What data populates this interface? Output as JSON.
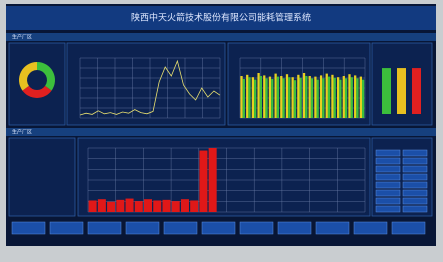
{
  "header": {
    "title": "陕西中天火箭技术股份有限公司能耗管理系统"
  },
  "sections": [
    "生产厂区",
    "生产厂区"
  ],
  "donut": {
    "values": [
      35,
      30,
      35
    ],
    "colors": [
      "#3cbf3c",
      "#e02020",
      "#e8c020"
    ]
  },
  "line": {
    "ylim": [
      0,
      100
    ],
    "color": "#e8e070",
    "values": [
      5,
      8,
      6,
      12,
      7,
      9,
      6,
      10,
      8,
      14,
      9,
      7,
      11,
      60,
      85,
      70,
      95,
      55,
      40,
      30,
      50,
      35,
      45,
      38
    ]
  },
  "bars": {
    "ylim": [
      0,
      100
    ],
    "series": [
      {
        "color": "#e8d020",
        "values": [
          70,
          72,
          68,
          75,
          71,
          69,
          74,
          70,
          73,
          68,
          72,
          75,
          70,
          69,
          71,
          74,
          72,
          68,
          70,
          73,
          71,
          69
        ]
      },
      {
        "color": "#3cbf3c",
        "values": [
          65,
          68,
          64,
          70,
          66,
          65,
          69,
          66,
          68,
          63,
          67,
          70,
          66,
          64,
          66,
          69,
          67,
          64,
          66,
          68,
          66,
          64
        ]
      }
    ]
  },
  "gauges": {
    "ylim": [
      0,
      100
    ],
    "values": [
      82,
      82,
      82
    ],
    "colors": [
      "#3cbf3c",
      "#e8c020",
      "#e02020"
    ]
  },
  "power": {
    "ylim": [
      0,
      100
    ],
    "color": "#e01818",
    "values": [
      18,
      20,
      16,
      19,
      21,
      17,
      20,
      18,
      19,
      17,
      20,
      18,
      96,
      100,
      null,
      null,
      null,
      null,
      null,
      null,
      null,
      null,
      null,
      null,
      null,
      null,
      null,
      null,
      null,
      null
    ]
  }
}
